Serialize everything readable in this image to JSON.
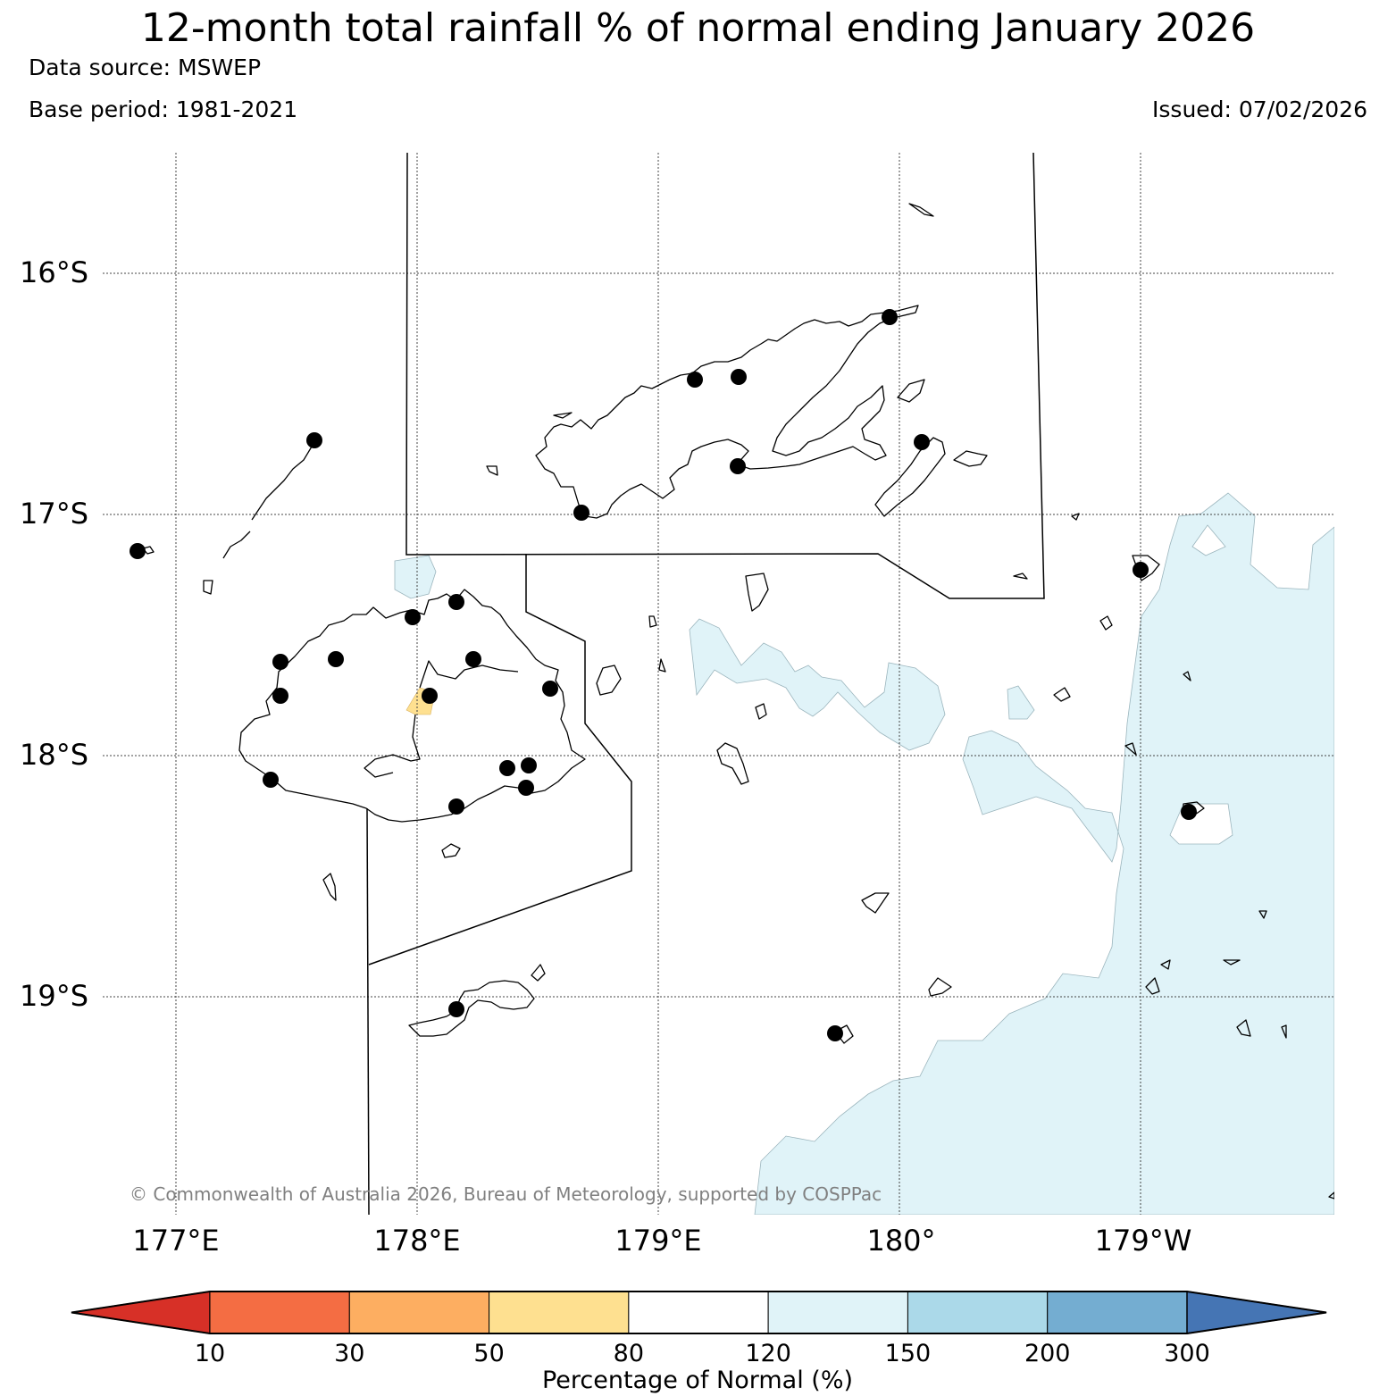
{
  "title": "12-month total rainfall % of normal ending January 2026",
  "data_source": "Data source: MSWEP",
  "base_period": "Base period: 1981-2021",
  "issued": "Issued: 07/02/2026",
  "copyright": "© Commonwealth of Australia 2026, Bureau of Meteorology, supported by COSPPac",
  "map": {
    "lat_labels": [
      "16°S",
      "17°S",
      "18°S",
      "19°S"
    ],
    "lon_labels": [
      "177°E",
      "178°E",
      "179°E",
      "180°",
      "179°W"
    ]
  },
  "legend": {
    "title": "Percentage of Normal (%)",
    "ticks": [
      "10",
      "30",
      "50",
      "80",
      "120",
      "150",
      "200",
      "300"
    ],
    "colors": [
      "#d73027",
      "#f46d43",
      "#fdae61",
      "#fee090",
      "#ffffff",
      "#e0f3f8",
      "#abd9e9",
      "#74add1",
      "#4575b4"
    ]
  },
  "colors": {
    "wet_fill": "#e0f3f8",
    "dry_fill": "#fee090",
    "station": "#000000"
  }
}
